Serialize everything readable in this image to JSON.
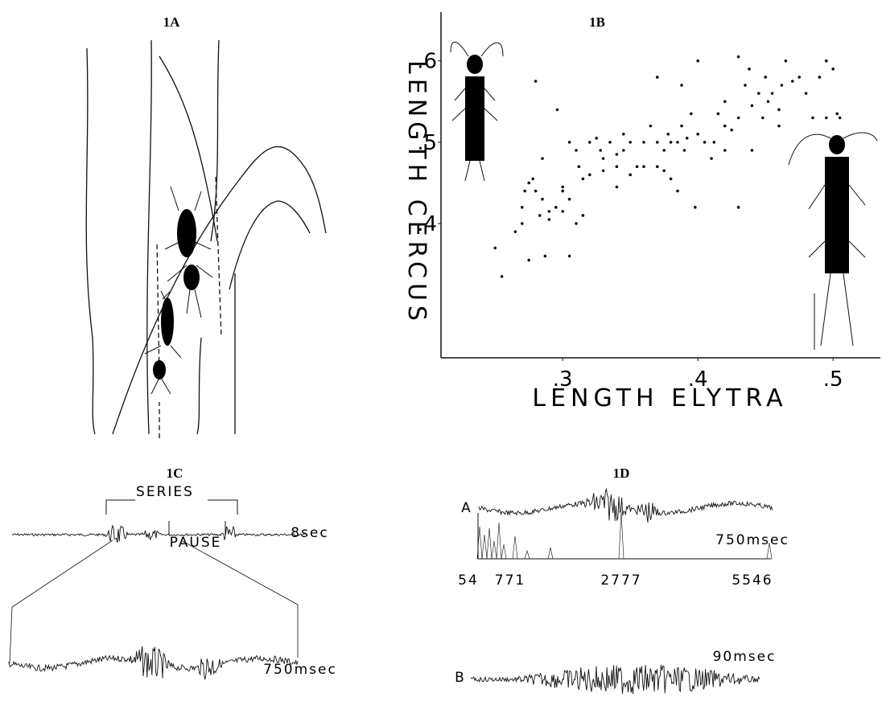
{
  "figure": {
    "panel_a": {
      "label": "1A"
    },
    "panel_c": {
      "label": "1C",
      "series_label": "SERIES",
      "pause_label": "PAUSE",
      "scale_top": "8sec",
      "scale_bottom": "750msec"
    },
    "panel_d": {
      "label": "1D",
      "trace_a": "A",
      "scale_a": "750msec",
      "interval_labels": [
        "54",
        "771",
        "2777",
        "5546"
      ],
      "trace_b": "B",
      "scale_b": "90msec"
    }
  },
  "chart_data": {
    "type": "scatter",
    "title": "1B",
    "x_label": "LENGTH ELYTRA",
    "y_label": "LENGTH CERCUS",
    "color": "#111111",
    "xlim": [
      0.21,
      0.535
    ],
    "ylim": [
      0.235,
      0.66
    ],
    "xticks": [
      {
        "value": 0.3,
        "label": ".3"
      },
      {
        "value": 0.4,
        "label": ".4"
      },
      {
        "value": 0.5,
        "label": ".5"
      }
    ],
    "yticks": [
      {
        "value": 0.4,
        "label": ".4"
      },
      {
        "value": 0.5,
        "label": ".5"
      },
      {
        "value": 0.6,
        "label": ".6"
      }
    ],
    "x": [
      0.25,
      0.255,
      0.275,
      0.287,
      0.305,
      0.265,
      0.27,
      0.27,
      0.272,
      0.275,
      0.278,
      0.28,
      0.283,
      0.285,
      0.29,
      0.295,
      0.3,
      0.305,
      0.31,
      0.315,
      0.3,
      0.29,
      0.285,
      0.28,
      0.296,
      0.305,
      0.31,
      0.312,
      0.315,
      0.32,
      0.32,
      0.325,
      0.328,
      0.33,
      0.335,
      0.34,
      0.34,
      0.345,
      0.345,
      0.35,
      0.35,
      0.355,
      0.36,
      0.36,
      0.365,
      0.37,
      0.37,
      0.375,
      0.375,
      0.378,
      0.38,
      0.38,
      0.385,
      0.388,
      0.39,
      0.392,
      0.395,
      0.398,
      0.4,
      0.405,
      0.41,
      0.412,
      0.42,
      0.42,
      0.425,
      0.43,
      0.435,
      0.438,
      0.44,
      0.44,
      0.445,
      0.448,
      0.45,
      0.452,
      0.455,
      0.46,
      0.462,
      0.465,
      0.47,
      0.475,
      0.48,
      0.485,
      0.49,
      0.495,
      0.5,
      0.503,
      0.505,
      0.495,
      0.43,
      0.4,
      0.388,
      0.37,
      0.385,
      0.34,
      0.3,
      0.33,
      0.42,
      0.43,
      0.46,
      0.415
    ],
    "y": [
      0.37,
      0.335,
      0.355,
      0.36,
      0.36,
      0.39,
      0.4,
      0.42,
      0.44,
      0.45,
      0.455,
      0.44,
      0.41,
      0.43,
      0.405,
      0.42,
      0.415,
      0.43,
      0.4,
      0.41,
      0.44,
      0.415,
      0.48,
      0.575,
      0.54,
      0.5,
      0.49,
      0.47,
      0.455,
      0.46,
      0.5,
      0.505,
      0.49,
      0.48,
      0.5,
      0.485,
      0.47,
      0.49,
      0.51,
      0.46,
      0.5,
      0.47,
      0.47,
      0.5,
      0.52,
      0.47,
      0.5,
      0.465,
      0.49,
      0.51,
      0.455,
      0.5,
      0.5,
      0.52,
      0.49,
      0.505,
      0.535,
      0.42,
      0.51,
      0.5,
      0.48,
      0.5,
      0.49,
      0.52,
      0.515,
      0.53,
      0.57,
      0.59,
      0.545,
      0.49,
      0.56,
      0.53,
      0.58,
      0.55,
      0.56,
      0.54,
      0.57,
      0.6,
      0.575,
      0.58,
      0.56,
      0.53,
      0.58,
      0.6,
      0.59,
      0.535,
      0.53,
      0.53,
      0.42,
      0.6,
      0.57,
      0.58,
      0.44,
      0.445,
      0.445,
      0.465,
      0.55,
      0.605,
      0.52,
      0.535
    ]
  }
}
